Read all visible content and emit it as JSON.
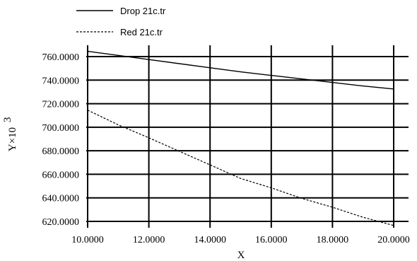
{
  "chart_data": {
    "type": "line",
    "xlabel": "X",
    "ylabel": "Y×10",
    "ylabel_exponent": "3",
    "xlim": [
      10,
      20
    ],
    "ylim": [
      612,
      768
    ],
    "grid": true,
    "legend_position": "top-left",
    "x_ticks": [
      10,
      12,
      14,
      16,
      18,
      20
    ],
    "x_tick_labels": [
      "10.0000",
      "12.0000",
      "14.0000",
      "16.0000",
      "18.0000",
      "20.0000"
    ],
    "y_ticks": [
      620,
      640,
      660,
      680,
      700,
      720,
      740,
      760
    ],
    "y_tick_labels": [
      "620.0000",
      "640.0000",
      "660.0000",
      "680.0000",
      "700.0000",
      "720.0000",
      "740.0000",
      "760.0000"
    ],
    "series": [
      {
        "name": "Drop 21c.tr",
        "style": "solid",
        "x": [
          10,
          11,
          12,
          13,
          14,
          15,
          16,
          17,
          18,
          19,
          20
        ],
        "y": [
          764.5,
          761.0,
          757.5,
          754.0,
          750.5,
          747.0,
          744.0,
          741.0,
          738.0,
          735.0,
          732.5
        ]
      },
      {
        "name": "Red 21c.tr",
        "style": "dashed",
        "x": [
          10,
          11,
          12,
          13,
          14,
          15,
          16,
          17,
          18,
          19,
          20
        ],
        "y": [
          714.5,
          702.0,
          691.0,
          679.5,
          668.0,
          656.5,
          648.5,
          639.5,
          632.0,
          623.5,
          616.5
        ]
      }
    ]
  }
}
